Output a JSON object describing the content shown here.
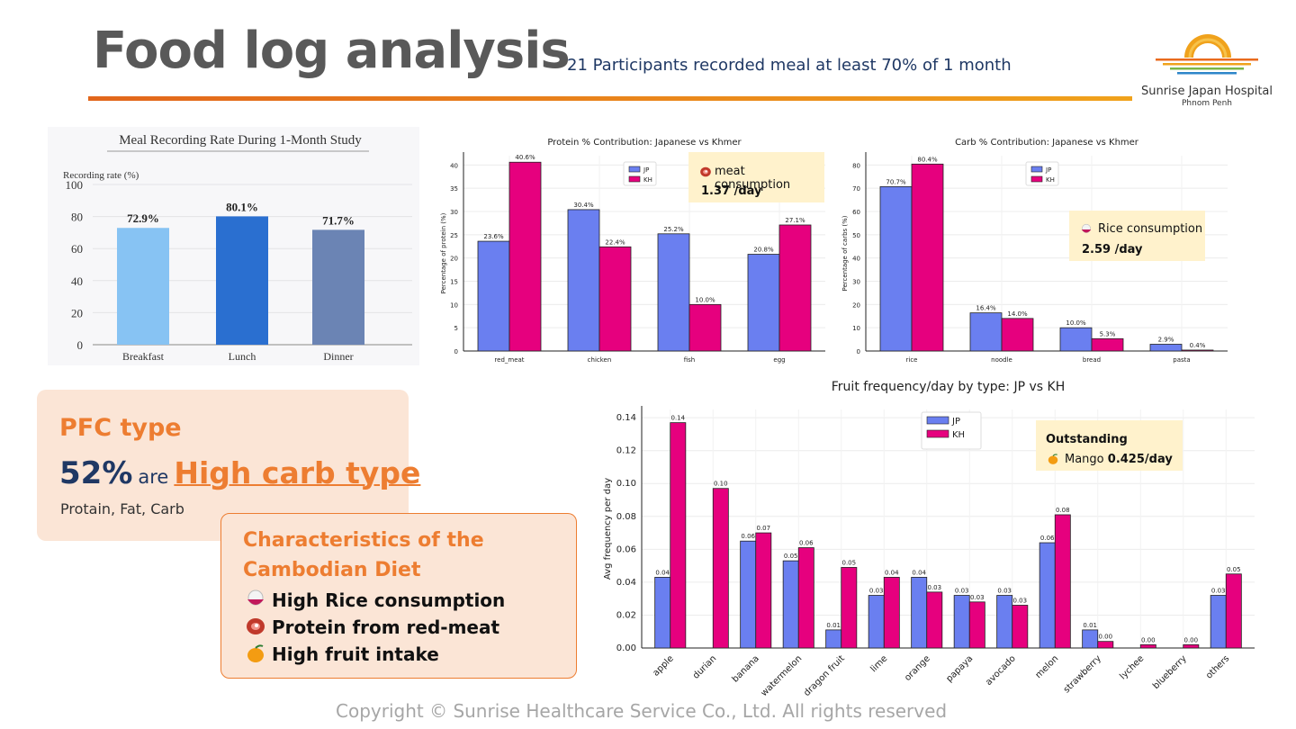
{
  "header": {
    "title": "Food log analysis",
    "subtitle": "21 Participants recorded meal at least 70% of 1 month"
  },
  "logo": {
    "name": "Sunrise Japan Hospital",
    "location": "Phnom Penh"
  },
  "colors": {
    "jp": "#6a7ff0",
    "kh": "#e6007e",
    "accent": "#ed7d31",
    "navy": "#1f3864",
    "callout": "#fff2cc",
    "card": "#fbe5d6"
  },
  "pfc": {
    "label": "PFC type",
    "percent": "52%",
    "connector": "are",
    "type": "High carb type",
    "note": "Protain, Fat, Carb"
  },
  "characteristics": {
    "title": "Characteristics of the Cambodian Diet",
    "items": [
      {
        "icon": "rice-bowl-icon",
        "text": "High Rice consumption"
      },
      {
        "icon": "meat-icon",
        "text": "Protein from red-meat"
      },
      {
        "icon": "mango-icon",
        "text": "High fruit intake"
      }
    ]
  },
  "callouts": {
    "meat": {
      "icon": "meat-icon",
      "label": "meat consumption",
      "value": "1.37 /day"
    },
    "rice": {
      "icon": "rice-bowl-icon",
      "label": "Rice consumption",
      "value": "2.59 /day"
    },
    "fruit": {
      "title": "Outstanding",
      "icon": "mango-icon",
      "label": "Mango",
      "value": "0.425/day"
    }
  },
  "copyright": "Copyright © Sunrise Healthcare Service Co., Ltd. All rights reserved",
  "chart_data": [
    {
      "type": "bar",
      "title": "Meal Recording Rate During 1-Month Study",
      "ylabel": "Recording rate (%)",
      "categories": [
        "Breakfast",
        "Lunch",
        "Dinner"
      ],
      "values": [
        72.9,
        80.1,
        71.7
      ],
      "labels": [
        "72.9%",
        "80.1%",
        "71.7%"
      ],
      "bar_colors": [
        "#87c3f3",
        "#2a6fd0",
        "#6b84b4"
      ],
      "ylim": [
        0,
        100
      ],
      "yticks": [
        0,
        20,
        40,
        60,
        80,
        100
      ],
      "grid": true
    },
    {
      "type": "bar",
      "title": "Protein % Contribution: Japanese vs Khmer",
      "ylabel": "Percentage of protein (%)",
      "categories": [
        "red_meat",
        "chicken",
        "fish",
        "egg"
      ],
      "series": [
        {
          "name": "JP",
          "values": [
            23.6,
            30.4,
            25.2,
            20.8
          ],
          "labels": [
            "23.6%",
            "30.4%",
            "25.2%",
            "20.8%"
          ]
        },
        {
          "name": "KH",
          "values": [
            40.6,
            22.4,
            10.0,
            27.1
          ],
          "labels": [
            "40.6%",
            "22.4%",
            "10.0%",
            "27.1%"
          ]
        }
      ],
      "ylim": [
        0,
        42
      ],
      "yticks": [
        0,
        5,
        10,
        15,
        20,
        25,
        30,
        35,
        40
      ],
      "legend": "top-center",
      "grid": true
    },
    {
      "type": "bar",
      "title": "Carb % Contribution: Japanese vs Khmer",
      "ylabel": "Percentage of carbs (%)",
      "categories": [
        "rice",
        "noodle",
        "bread",
        "pasta"
      ],
      "series": [
        {
          "name": "JP",
          "values": [
            70.7,
            16.4,
            10.0,
            2.9
          ],
          "labels": [
            "70.7%",
            "16.4%",
            "10.0%",
            "2.9%"
          ]
        },
        {
          "name": "KH",
          "values": [
            80.4,
            14.0,
            5.3,
            0.4
          ],
          "labels": [
            "80.4%",
            "14.0%",
            "5.3%",
            "0.4%"
          ]
        }
      ],
      "ylim": [
        0,
        84
      ],
      "yticks": [
        0,
        10,
        20,
        30,
        40,
        50,
        60,
        70,
        80
      ],
      "legend": "top-center",
      "grid": true
    },
    {
      "type": "bar",
      "title": "Fruit frequency/day by type: JP vs KH",
      "ylabel": "Avg frequency per day",
      "categories": [
        "apple",
        "durian",
        "banana",
        "watermelon",
        "dragon fruit",
        "lime",
        "orange",
        "papaya",
        "avocado",
        "melon",
        "strawberry",
        "lychee",
        "blueberry",
        "others"
      ],
      "series": [
        {
          "name": "JP",
          "values": [
            0.043,
            0,
            0.065,
            0.053,
            0.011,
            0.032,
            0.043,
            0.032,
            0.032,
            0.064,
            0.011,
            0,
            0,
            0.032
          ],
          "labels": [
            "0.04",
            "",
            "0.06",
            "0.05",
            "0.01",
            "0.03",
            "0.04",
            "0.03",
            "0.03",
            "0.06",
            "0.01",
            "",
            "",
            "0.03"
          ]
        },
        {
          "name": "KH",
          "values": [
            0.137,
            0.097,
            0.07,
            0.061,
            0.049,
            0.043,
            0.034,
            0.028,
            0.026,
            0.081,
            0.004,
            0.002,
            0.002,
            0.045
          ],
          "labels": [
            "0.14",
            "0.10",
            "0.07",
            "0.06",
            "0.05",
            "0.04",
            "0.03",
            "0.03",
            "0.03",
            "0.08",
            "0.00",
            "0.00",
            "0.00",
            "0.05"
          ]
        }
      ],
      "ylim": [
        0,
        0.145
      ],
      "yticks": [
        0.0,
        0.02,
        0.04,
        0.06,
        0.08,
        0.1,
        0.12,
        0.14
      ],
      "ytick_labels": [
        "0.00",
        "0.02",
        "0.04",
        "0.06",
        "0.08",
        "0.10",
        "0.12",
        "0.14"
      ],
      "legend": "top-center",
      "grid": true
    }
  ]
}
